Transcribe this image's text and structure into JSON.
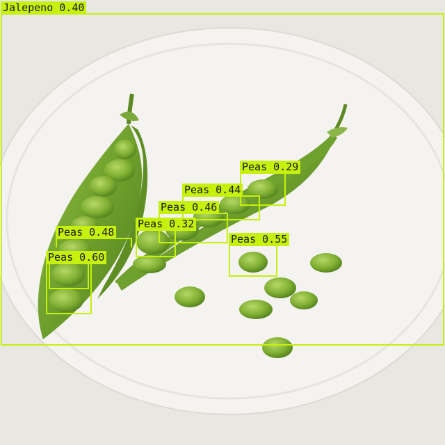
{
  "image": {
    "description_colors": {
      "background": "#e9e7e2",
      "plate": "#f3f2ef",
      "pod": "#6c9b2c",
      "pea": "#7fae32",
      "box": "#c6f00e"
    }
  },
  "detections": [
    {
      "label": "Jalepeno",
      "score": "0.40"
    },
    {
      "label": "Peas",
      "score": "0.29"
    },
    {
      "label": "Peas",
      "score": "0.44"
    },
    {
      "label": "Peas",
      "score": "0.46"
    },
    {
      "label": "Peas",
      "score": "0.32"
    },
    {
      "label": "Peas",
      "score": "0.55"
    },
    {
      "label": "Peas",
      "score": "0.48"
    },
    {
      "label": "Peas",
      "score": "0.60"
    }
  ]
}
